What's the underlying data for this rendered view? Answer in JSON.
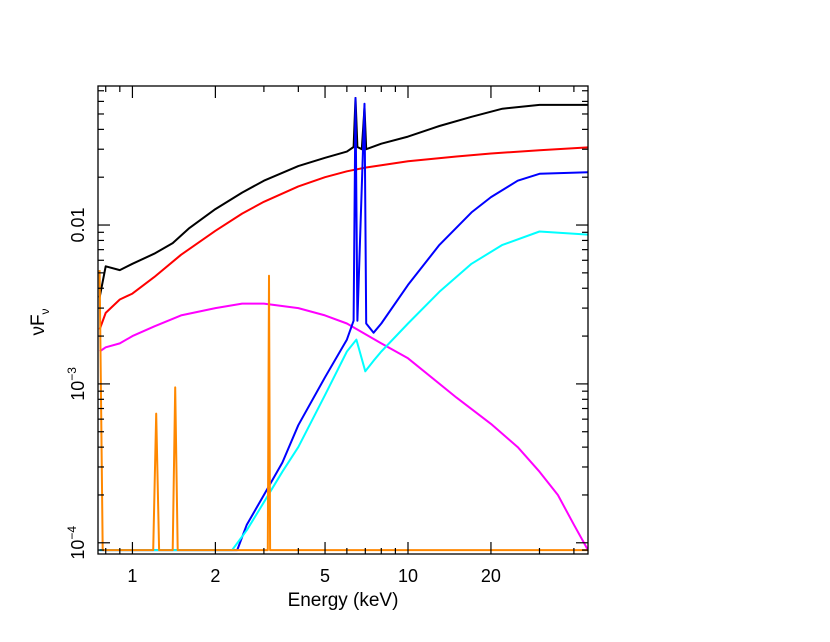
{
  "chart_data": {
    "type": "line",
    "xlabel": "Energy (keV)",
    "ylabel": "νF",
    "ylabel_sub": "ν",
    "xscale": "log",
    "yscale": "log",
    "xlim": [
      0.75,
      45
    ],
    "ylim": [
      8.5e-05,
      0.075
    ],
    "x_ticks": [
      {
        "value": 1,
        "label": "1"
      },
      {
        "value": 2,
        "label": "2"
      },
      {
        "value": 5,
        "label": "5"
      },
      {
        "value": 10,
        "label": "10"
      },
      {
        "value": 20,
        "label": "20"
      }
    ],
    "y_ticks": [
      {
        "value": 0.01,
        "label": "0.01"
      },
      {
        "value": 0.001,
        "label": "10",
        "exp": "−3"
      },
      {
        "value": 0.0001,
        "label": "10",
        "exp": "−4"
      }
    ],
    "grid": false,
    "series": [
      {
        "color": "#000000",
        "points": [
          [
            0.76,
            0.0035
          ],
          [
            0.8,
            0.0055
          ],
          [
            0.9,
            0.0052
          ],
          [
            1.0,
            0.0057
          ],
          [
            1.2,
            0.0066
          ],
          [
            1.4,
            0.0077
          ],
          [
            1.6,
            0.0095
          ],
          [
            2.0,
            0.0126
          ],
          [
            2.5,
            0.016
          ],
          [
            3.0,
            0.019
          ],
          [
            4.0,
            0.0235
          ],
          [
            5.0,
            0.0265
          ],
          [
            6.0,
            0.029
          ],
          [
            6.35,
            0.031
          ],
          [
            6.45,
            0.063
          ],
          [
            6.55,
            0.031
          ],
          [
            6.8,
            0.03
          ],
          [
            6.95,
            0.055
          ],
          [
            7.05,
            0.03
          ],
          [
            8.0,
            0.0325
          ],
          [
            10.0,
            0.036
          ],
          [
            13.0,
            0.042
          ],
          [
            17.0,
            0.048
          ],
          [
            22.0,
            0.054
          ],
          [
            30.0,
            0.057
          ],
          [
            45.0,
            0.057
          ]
        ]
      },
      {
        "color": "#ff0000",
        "points": [
          [
            0.76,
            0.0022
          ],
          [
            0.8,
            0.0028
          ],
          [
            0.9,
            0.0034
          ],
          [
            1.0,
            0.0037
          ],
          [
            1.2,
            0.0047
          ],
          [
            1.5,
            0.0065
          ],
          [
            2.0,
            0.0092
          ],
          [
            2.5,
            0.0118
          ],
          [
            3.0,
            0.014
          ],
          [
            4.0,
            0.0175
          ],
          [
            5.0,
            0.02
          ],
          [
            6.0,
            0.0218
          ],
          [
            7.0,
            0.023
          ],
          [
            8.0,
            0.0238
          ],
          [
            10.0,
            0.0252
          ],
          [
            15.0,
            0.027
          ],
          [
            20.0,
            0.0282
          ],
          [
            30.0,
            0.0296
          ],
          [
            45.0,
            0.0308
          ]
        ]
      },
      {
        "color": "#ff00ff",
        "points": [
          [
            0.76,
            0.0016
          ],
          [
            0.8,
            0.0017
          ],
          [
            0.9,
            0.0018
          ],
          [
            1.0,
            0.002
          ],
          [
            1.2,
            0.0023
          ],
          [
            1.5,
            0.0027
          ],
          [
            2.0,
            0.003
          ],
          [
            2.5,
            0.0032
          ],
          [
            3.0,
            0.0032
          ],
          [
            4.0,
            0.003
          ],
          [
            5.0,
            0.0027
          ],
          [
            6.0,
            0.0024
          ],
          [
            8.0,
            0.0018
          ],
          [
            10.0,
            0.00145
          ],
          [
            15.0,
            0.00082
          ],
          [
            20.0,
            0.00056
          ],
          [
            25.0,
            0.0004
          ],
          [
            30.0,
            0.00028
          ],
          [
            35.0,
            0.0002
          ],
          [
            40.0,
            0.00013
          ],
          [
            45.0,
            9e-05
          ]
        ]
      },
      {
        "color": "#0000ff",
        "points": [
          [
            0.76,
            9e-05
          ],
          [
            2.4,
            9e-05
          ],
          [
            2.6,
            0.00013
          ],
          [
            3.0,
            0.0002
          ],
          [
            3.5,
            0.00032
          ],
          [
            4.0,
            0.00055
          ],
          [
            5.0,
            0.0011
          ],
          [
            6.0,
            0.0019
          ],
          [
            6.35,
            0.0025
          ],
          [
            6.45,
            0.063
          ],
          [
            6.55,
            0.0025
          ],
          [
            6.95,
            0.058
          ],
          [
            7.05,
            0.0024
          ],
          [
            7.5,
            0.0021
          ],
          [
            8.0,
            0.0024
          ],
          [
            10.0,
            0.0042
          ],
          [
            13.0,
            0.0075
          ],
          [
            17.0,
            0.012
          ],
          [
            20.0,
            0.015
          ],
          [
            25.0,
            0.019
          ],
          [
            30.0,
            0.021
          ],
          [
            45.0,
            0.0215
          ]
        ]
      },
      {
        "color": "#00ffff",
        "points": [
          [
            0.76,
            9e-05
          ],
          [
            2.3,
            9e-05
          ],
          [
            2.6,
            0.00012
          ],
          [
            3.0,
            0.00018
          ],
          [
            3.5,
            0.00028
          ],
          [
            4.0,
            0.0004
          ],
          [
            5.0,
            0.00085
          ],
          [
            6.0,
            0.0016
          ],
          [
            6.5,
            0.0019
          ],
          [
            7.0,
            0.0012
          ],
          [
            7.5,
            0.0014
          ],
          [
            8.0,
            0.0016
          ],
          [
            10.0,
            0.0024
          ],
          [
            13.0,
            0.0038
          ],
          [
            17.0,
            0.0057
          ],
          [
            22.0,
            0.0075
          ],
          [
            30.0,
            0.0091
          ],
          [
            45.0,
            0.0087
          ]
        ]
      },
      {
        "color": "#ff8800",
        "points": [
          [
            0.76,
            0.0052
          ],
          [
            0.78,
            9e-05
          ],
          [
            1.19,
            9e-05
          ],
          [
            1.22,
            0.00065
          ],
          [
            1.25,
            9e-05
          ],
          [
            1.4,
            9e-05
          ],
          [
            1.43,
            0.00095
          ],
          [
            1.46,
            9e-05
          ],
          [
            3.1,
            9e-05
          ],
          [
            3.13,
            0.0048
          ],
          [
            3.16,
            9e-05
          ],
          [
            45.0,
            9e-05
          ]
        ]
      }
    ]
  }
}
